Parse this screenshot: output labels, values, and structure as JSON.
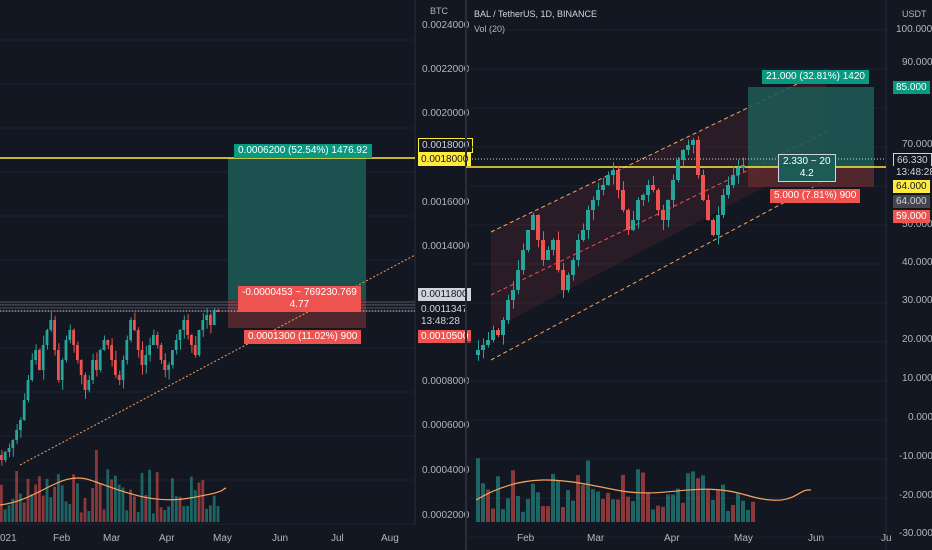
{
  "left": {
    "currency": "BTC",
    "price_scale": [
      "0.0024000",
      "0.0022000",
      "0.0020000",
      "0.0016000",
      "0.0014000",
      "0.0008000",
      "0.0006000",
      "0.0004000",
      "0.0002000"
    ],
    "tags": {
      "target": "0.0018000",
      "entry": "0.0011800",
      "current": "0.0011347",
      "countdown": "13:48:28",
      "stop": "0.0010500"
    },
    "time_labels": [
      "021",
      "Feb",
      "Mar",
      "Apr",
      "May",
      "Jun",
      "Jul",
      "Aug"
    ],
    "profit_box": "0.0006200 (52.54%) 1476.92",
    "position_box": {
      "line1": "-0.0000453 ~ 769230.769",
      "line2": "4.77"
    },
    "loss_box": "0.0001300 (11.02%) 900"
  },
  "right": {
    "currency": "USDT",
    "legend": {
      "symbol": "BAL / TetherUS, 1D, BINANCE",
      "indicator": "Vol (20)"
    },
    "price_scale": [
      "100.000",
      "90.000",
      "70.000",
      "50.000",
      "40.000",
      "30.000",
      "20.000",
      "10.000",
      "0.000",
      "-10.000",
      "-20.000",
      "-30.000"
    ],
    "tags": {
      "target": "85.000",
      "current": "66.330",
      "countdown": "13:48:28",
      "entry": "64.000",
      "mid": "64.000",
      "stop": "59.000"
    },
    "time_labels": [
      "Feb",
      "Mar",
      "Apr",
      "May",
      "Jun",
      "Ju"
    ],
    "profit_box": "21.000 (32.81%) 1420",
    "position_box": {
      "line1": "2.330 ~ 20",
      "line2": "4.2"
    },
    "loss_box": "5.000 (7.81%) 900"
  },
  "colors": {
    "up": "#26a69a",
    "down": "#ef5350",
    "yellow": "#ffeb3b",
    "orange": "#f7a35c",
    "profit": "#1d5c56",
    "loss": "#5c2a2e"
  }
}
